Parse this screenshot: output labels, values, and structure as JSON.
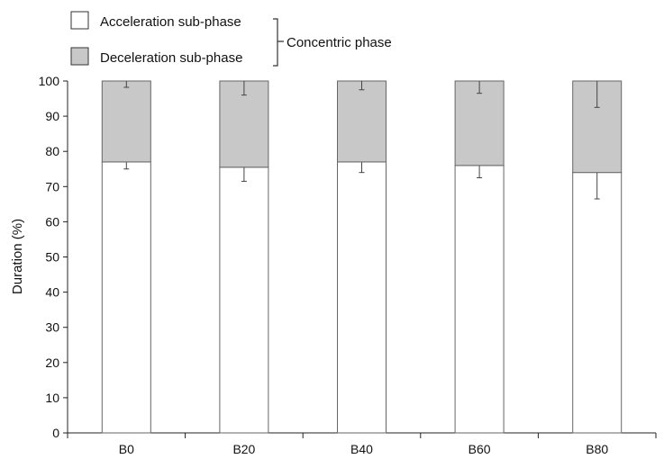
{
  "chart_data": {
    "type": "bar",
    "stacked": true,
    "categories": [
      "B0",
      "B20",
      "B40",
      "B60",
      "B80"
    ],
    "series": [
      {
        "name": "Acceleration sub-phase",
        "color": "#ffffff",
        "values": [
          77,
          75.5,
          77,
          76,
          74
        ],
        "error": [
          2,
          4,
          3,
          3.5,
          7.5
        ]
      },
      {
        "name": "Deceleration sub-phase",
        "color": "#c8c8c8",
        "values": [
          23,
          24.5,
          23,
          24,
          26
        ],
        "error": [
          1.8,
          4,
          2.5,
          3.5,
          7.5
        ]
      }
    ],
    "legend_group_label": "Concentric phase",
    "legend_position": "top-left",
    "ylabel": "Duration (%)",
    "xlabel": "",
    "ylim": [
      0,
      100
    ],
    "yticks": [
      0,
      10,
      20,
      30,
      40,
      50,
      60,
      70,
      80,
      90,
      100
    ],
    "grid": false
  }
}
